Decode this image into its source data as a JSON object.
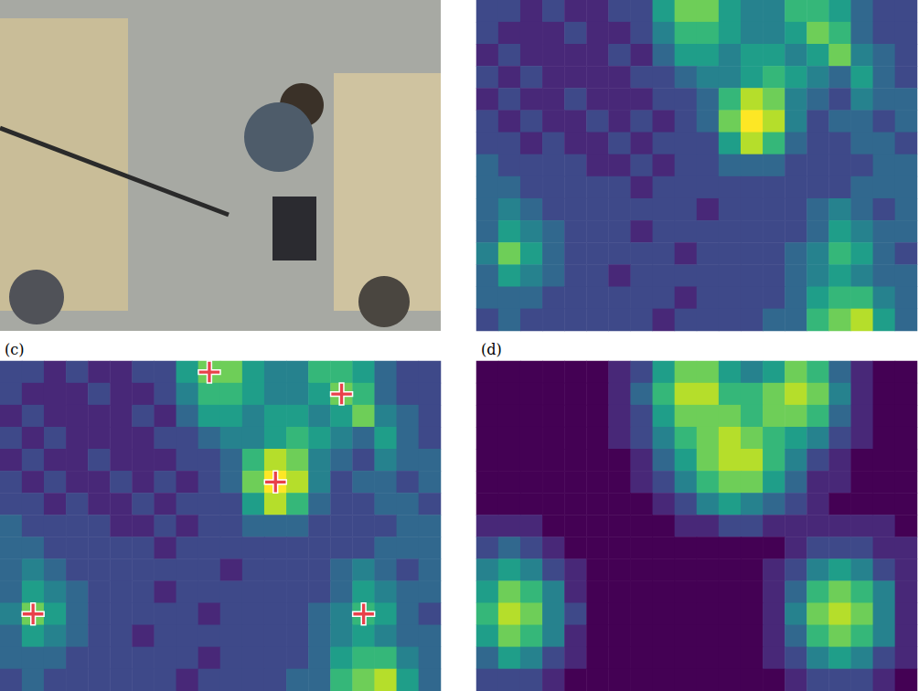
{
  "chart_data": [
    {
      "type": "photo"
    },
    {
      "type": "heatmap",
      "tick_labels": false,
      "value_range": [
        0,
        9
      ],
      "cells": [
        [
          2,
          2,
          1,
          2,
          1,
          1,
          2,
          2,
          5,
          7,
          7,
          5,
          4,
          4,
          6,
          6,
          5,
          3,
          2,
          2
        ],
        [
          2,
          1,
          1,
          1,
          2,
          1,
          1,
          2,
          4,
          6,
          6,
          5,
          4,
          4,
          5,
          7,
          6,
          3,
          2,
          2
        ],
        [
          1,
          2,
          1,
          1,
          1,
          1,
          2,
          1,
          3,
          5,
          5,
          4,
          5,
          5,
          4,
          5,
          7,
          4,
          3,
          2
        ],
        [
          2,
          1,
          2,
          1,
          1,
          1,
          1,
          2,
          2,
          3,
          4,
          4,
          5,
          6,
          5,
          4,
          3,
          5,
          3,
          2
        ],
        [
          1,
          2,
          1,
          1,
          2,
          1,
          1,
          1,
          2,
          2,
          3,
          6,
          8,
          7,
          4,
          3,
          2,
          4,
          3,
          3
        ],
        [
          2,
          1,
          2,
          1,
          1,
          2,
          1,
          2,
          1,
          2,
          3,
          7,
          9,
          8,
          4,
          2,
          3,
          3,
          2,
          3
        ],
        [
          2,
          2,
          1,
          2,
          1,
          1,
          2,
          1,
          2,
          2,
          2,
          5,
          8,
          6,
          3,
          2,
          2,
          3,
          3,
          2
        ],
        [
          3,
          2,
          2,
          2,
          2,
          1,
          1,
          2,
          1,
          2,
          2,
          3,
          3,
          3,
          2,
          2,
          2,
          2,
          3,
          3
        ],
        [
          3,
          3,
          2,
          2,
          2,
          2,
          2,
          1,
          2,
          2,
          2,
          2,
          2,
          2,
          2,
          2,
          2,
          3,
          3,
          3
        ],
        [
          3,
          4,
          3,
          2,
          2,
          2,
          2,
          2,
          2,
          2,
          1,
          2,
          2,
          2,
          2,
          3,
          4,
          3,
          2,
          3
        ],
        [
          3,
          5,
          4,
          3,
          2,
          2,
          2,
          1,
          2,
          2,
          2,
          2,
          2,
          2,
          2,
          3,
          5,
          4,
          3,
          3
        ],
        [
          4,
          7,
          5,
          3,
          2,
          2,
          2,
          2,
          2,
          1,
          2,
          2,
          2,
          2,
          3,
          4,
          6,
          5,
          3,
          2
        ],
        [
          3,
          5,
          4,
          3,
          2,
          2,
          1,
          2,
          2,
          2,
          2,
          2,
          2,
          2,
          3,
          4,
          5,
          4,
          3,
          3
        ],
        [
          3,
          3,
          3,
          2,
          2,
          2,
          2,
          2,
          2,
          1,
          2,
          2,
          2,
          2,
          3,
          5,
          6,
          6,
          4,
          3
        ],
        [
          2,
          3,
          2,
          2,
          2,
          2,
          2,
          2,
          1,
          2,
          2,
          2,
          2,
          3,
          3,
          6,
          7,
          8,
          5,
          3
        ]
      ]
    },
    {
      "type": "heatmap",
      "title": "(c)",
      "tick_labels": false,
      "value_range": [
        0,
        9
      ],
      "cells": [
        [
          2,
          2,
          1,
          2,
          1,
          1,
          2,
          2,
          5,
          7,
          7,
          5,
          4,
          4,
          6,
          6,
          5,
          3,
          2,
          2
        ],
        [
          2,
          1,
          1,
          1,
          2,
          1,
          1,
          2,
          4,
          6,
          6,
          5,
          4,
          4,
          5,
          7,
          6,
          3,
          2,
          2
        ],
        [
          1,
          2,
          1,
          1,
          1,
          1,
          2,
          1,
          3,
          5,
          5,
          4,
          5,
          5,
          4,
          5,
          7,
          4,
          3,
          2
        ],
        [
          2,
          1,
          2,
          1,
          1,
          1,
          1,
          2,
          2,
          3,
          4,
          4,
          5,
          6,
          5,
          4,
          3,
          5,
          3,
          2
        ],
        [
          1,
          2,
          1,
          1,
          2,
          1,
          1,
          1,
          2,
          2,
          3,
          6,
          8,
          7,
          4,
          3,
          2,
          4,
          3,
          3
        ],
        [
          2,
          1,
          2,
          1,
          1,
          2,
          1,
          2,
          1,
          2,
          3,
          7,
          9,
          8,
          4,
          2,
          3,
          3,
          2,
          3
        ],
        [
          2,
          2,
          1,
          2,
          1,
          1,
          2,
          1,
          2,
          2,
          2,
          5,
          8,
          6,
          3,
          2,
          2,
          3,
          3,
          2
        ],
        [
          3,
          2,
          2,
          2,
          2,
          1,
          1,
          2,
          1,
          2,
          2,
          3,
          3,
          3,
          2,
          2,
          2,
          2,
          3,
          3
        ],
        [
          3,
          3,
          2,
          2,
          2,
          2,
          2,
          1,
          2,
          2,
          2,
          2,
          2,
          2,
          2,
          2,
          2,
          3,
          3,
          3
        ],
        [
          3,
          4,
          3,
          2,
          2,
          2,
          2,
          2,
          2,
          2,
          1,
          2,
          2,
          2,
          2,
          3,
          4,
          3,
          2,
          3
        ],
        [
          3,
          5,
          4,
          3,
          2,
          2,
          2,
          1,
          2,
          2,
          2,
          2,
          2,
          2,
          2,
          3,
          5,
          4,
          3,
          3
        ],
        [
          4,
          7,
          5,
          3,
          2,
          2,
          2,
          2,
          2,
          1,
          2,
          2,
          2,
          2,
          3,
          4,
          6,
          5,
          3,
          2
        ],
        [
          3,
          5,
          4,
          3,
          2,
          2,
          1,
          2,
          2,
          2,
          2,
          2,
          2,
          2,
          3,
          4,
          5,
          4,
          3,
          3
        ],
        [
          3,
          3,
          3,
          2,
          2,
          2,
          2,
          2,
          2,
          1,
          2,
          2,
          2,
          2,
          3,
          5,
          6,
          6,
          4,
          3
        ],
        [
          2,
          3,
          2,
          2,
          2,
          2,
          2,
          2,
          1,
          2,
          2,
          2,
          2,
          3,
          3,
          6,
          7,
          8,
          5,
          3
        ]
      ],
      "markers": [
        [
          9,
          0
        ],
        [
          15,
          1
        ],
        [
          12,
          5
        ],
        [
          1,
          11
        ],
        [
          16,
          11
        ]
      ],
      "marker": "cross",
      "color": "#e8414a"
    },
    {
      "type": "heatmap",
      "title": "(d)",
      "tick_labels": false,
      "value_range": [
        0,
        9
      ],
      "cells": [
        [
          0,
          0,
          0,
          0,
          0,
          0,
          1,
          2,
          5,
          7,
          7,
          5,
          4,
          5,
          7,
          6,
          3,
          1,
          0,
          0
        ],
        [
          0,
          0,
          0,
          0,
          0,
          0,
          1,
          3,
          6,
          8,
          8,
          6,
          6,
          7,
          8,
          7,
          4,
          1,
          0,
          0
        ],
        [
          0,
          0,
          0,
          0,
          0,
          0,
          1,
          2,
          5,
          7,
          7,
          7,
          6,
          7,
          7,
          6,
          3,
          1,
          0,
          0
        ],
        [
          0,
          0,
          0,
          0,
          0,
          0,
          1,
          2,
          4,
          6,
          7,
          8,
          7,
          6,
          5,
          4,
          2,
          1,
          0,
          0
        ],
        [
          0,
          0,
          0,
          0,
          0,
          0,
          0,
          1,
          3,
          5,
          7,
          8,
          8,
          6,
          4,
          2,
          1,
          0,
          0,
          0
        ],
        [
          0,
          0,
          0,
          0,
          0,
          0,
          0,
          1,
          2,
          4,
          6,
          7,
          7,
          5,
          3,
          1,
          1,
          0,
          0,
          0
        ],
        [
          0,
          0,
          0,
          0,
          0,
          0,
          0,
          0,
          1,
          2,
          4,
          5,
          4,
          3,
          2,
          1,
          0,
          0,
          0,
          0
        ],
        [
          1,
          1,
          1,
          0,
          0,
          0,
          0,
          0,
          0,
          1,
          1,
          2,
          2,
          1,
          1,
          1,
          1,
          1,
          1,
          0
        ],
        [
          2,
          3,
          2,
          1,
          0,
          0,
          0,
          0,
          0,
          0,
          0,
          0,
          0,
          0,
          1,
          2,
          2,
          2,
          1,
          1
        ],
        [
          4,
          5,
          4,
          2,
          1,
          0,
          0,
          0,
          0,
          0,
          0,
          0,
          0,
          1,
          2,
          4,
          5,
          4,
          2,
          1
        ],
        [
          5,
          7,
          6,
          4,
          1,
          0,
          0,
          0,
          0,
          0,
          0,
          0,
          0,
          1,
          3,
          6,
          7,
          6,
          4,
          1
        ],
        [
          6,
          8,
          7,
          4,
          2,
          0,
          0,
          0,
          0,
          0,
          0,
          0,
          0,
          1,
          4,
          7,
          8,
          7,
          4,
          1
        ],
        [
          5,
          7,
          6,
          4,
          1,
          0,
          0,
          0,
          0,
          0,
          0,
          0,
          0,
          1,
          3,
          6,
          7,
          6,
          4,
          1
        ],
        [
          3,
          5,
          4,
          2,
          1,
          0,
          0,
          0,
          0,
          0,
          0,
          0,
          0,
          1,
          2,
          4,
          5,
          4,
          2,
          1
        ],
        [
          2,
          2,
          2,
          1,
          0,
          0,
          0,
          0,
          0,
          0,
          0,
          0,
          0,
          0,
          1,
          2,
          2,
          2,
          1,
          0
        ]
      ]
    }
  ]
}
